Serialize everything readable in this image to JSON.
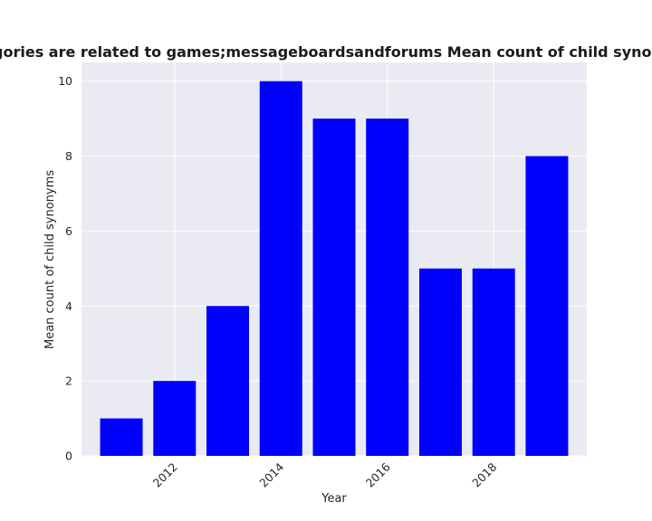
{
  "chart_data": {
    "type": "bar",
    "title": "Mean count of child synonyms in privacy policies of websites whose categories are related to games;messageboardsandforums",
    "visible_title": "Websites whose categories are related to games;messageboardsandforums Mean count of child synonyms in privacy policies",
    "xlabel": "Year",
    "ylabel": "Mean count of child synonyms",
    "x": [
      2011,
      2012,
      2013,
      2014,
      2015,
      2016,
      2017,
      2018,
      2019
    ],
    "values": [
      1,
      2,
      4,
      10,
      9,
      9,
      5,
      5,
      8
    ],
    "xticks": [
      2012,
      2014,
      2016,
      2018
    ],
    "yticks": [
      0,
      2,
      4,
      6,
      8,
      10
    ],
    "ylim": [
      0,
      10.5
    ],
    "xlim": [
      2010.25,
      2019.75
    ],
    "bar_color": "#0000ff",
    "background_color": "#eaeaf2",
    "grid": true
  }
}
